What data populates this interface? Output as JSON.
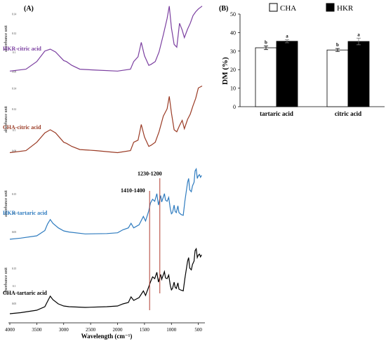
{
  "panels": {
    "a": {
      "label": "(A)"
    },
    "b": {
      "label": "(B)"
    }
  },
  "colors": {
    "purple": "#7b3fa0",
    "brown": "#9a3a24",
    "blue": "#2e7bbf",
    "black": "#000000",
    "marker": "#b03a2e"
  },
  "chart_data": [
    {
      "type": "line",
      "xlabel": "Wavelength (cm⁻¹)",
      "ylabel": "absorbance unit",
      "x_ticks": [
        "4000",
        "3500",
        "3000",
        "2500",
        "2000",
        "1500",
        "1000",
        "500"
      ],
      "xlim": [
        4000,
        430
      ],
      "x_reversed": true,
      "annotations": [
        {
          "label": "1410-1400",
          "x": 1405
        },
        {
          "label": "1230-1200",
          "x": 1215
        }
      ],
      "series": [
        {
          "name": "HKR-citric acid",
          "color": "purple",
          "y_ticks": [
            "0.08",
            "0.1",
            "0.12",
            "0.14"
          ],
          "points": [
            [
              4000,
              0.08
            ],
            [
              3700,
              0.082
            ],
            [
              3500,
              0.09
            ],
            [
              3350,
              0.101
            ],
            [
              3250,
              0.103
            ],
            [
              3150,
              0.1
            ],
            [
              3000,
              0.091
            ],
            [
              2950,
              0.09
            ],
            [
              2850,
              0.086
            ],
            [
              2700,
              0.082
            ],
            [
              2400,
              0.081
            ],
            [
              2000,
              0.08
            ],
            [
              1760,
              0.082
            ],
            [
              1700,
              0.09
            ],
            [
              1620,
              0.095
            ],
            [
              1560,
              0.11
            ],
            [
              1500,
              0.096
            ],
            [
              1420,
              0.086
            ],
            [
              1380,
              0.087
            ],
            [
              1300,
              0.09
            ],
            [
              1230,
              0.1
            ],
            [
              1150,
              0.118
            ],
            [
              1080,
              0.135
            ],
            [
              1040,
              0.148
            ],
            [
              1000,
              0.125
            ],
            [
              950,
              0.108
            ],
            [
              900,
              0.105
            ],
            [
              850,
              0.13
            ],
            [
              800,
              0.123
            ],
            [
              760,
              0.115
            ],
            [
              700,
              0.124
            ],
            [
              650,
              0.13
            ],
            [
              600,
              0.138
            ],
            [
              550,
              0.142
            ],
            [
              500,
              0.145
            ],
            [
              430,
              0.148
            ]
          ]
        },
        {
          "name": "CHA-citric acid",
          "color": "brown",
          "y_ticks": [
            "0.08",
            "0.1",
            "0.12",
            "0.14"
          ],
          "points": [
            [
              4000,
              0.078
            ],
            [
              3700,
              0.08
            ],
            [
              3500,
              0.088
            ],
            [
              3350,
              0.097
            ],
            [
              3250,
              0.1
            ],
            [
              3150,
              0.097
            ],
            [
              3000,
              0.088
            ],
            [
              2950,
              0.087
            ],
            [
              2850,
              0.084
            ],
            [
              2700,
              0.081
            ],
            [
              2400,
              0.08
            ],
            [
              2000,
              0.078
            ],
            [
              1760,
              0.08
            ],
            [
              1700,
              0.088
            ],
            [
              1620,
              0.09
            ],
            [
              1560,
              0.105
            ],
            [
              1500,
              0.093
            ],
            [
              1420,
              0.084
            ],
            [
              1380,
              0.085
            ],
            [
              1300,
              0.088
            ],
            [
              1230,
              0.098
            ],
            [
              1150,
              0.113
            ],
            [
              1080,
              0.12
            ],
            [
              1040,
              0.132
            ],
            [
              1000,
              0.116
            ],
            [
              950,
              0.1
            ],
            [
              900,
              0.098
            ],
            [
              850,
              0.104
            ],
            [
              800,
              0.109
            ],
            [
              760,
              0.101
            ],
            [
              700,
              0.11
            ],
            [
              650,
              0.115
            ],
            [
              600,
              0.123
            ],
            [
              550,
              0.13
            ],
            [
              500,
              0.14
            ],
            [
              430,
              0.142
            ]
          ]
        },
        {
          "name": "HKR-tartaric acid",
          "color": "blue",
          "y_ticks": [
            "0.05",
            "0.1",
            "0.15"
          ],
          "points": [
            [
              4000,
              0.03
            ],
            [
              3800,
              0.033
            ],
            [
              3500,
              0.039
            ],
            [
              3350,
              0.053
            ],
            [
              3300,
              0.07
            ],
            [
              3250,
              0.082
            ],
            [
              3200,
              0.072
            ],
            [
              3100,
              0.06
            ],
            [
              3000,
              0.052
            ],
            [
              2900,
              0.049
            ],
            [
              2600,
              0.044
            ],
            [
              2200,
              0.045
            ],
            [
              2000,
              0.047
            ],
            [
              1900,
              0.055
            ],
            [
              1800,
              0.06
            ],
            [
              1750,
              0.072
            ],
            [
              1700,
              0.06
            ],
            [
              1600,
              0.068
            ],
            [
              1520,
              0.09
            ],
            [
              1480,
              0.078
            ],
            [
              1420,
              0.105
            ],
            [
              1390,
              0.125
            ],
            [
              1350,
              0.135
            ],
            [
              1310,
              0.13
            ],
            [
              1270,
              0.15
            ],
            [
              1240,
              0.12
            ],
            [
              1200,
              0.145
            ],
            [
              1180,
              0.128
            ],
            [
              1130,
              0.15
            ],
            [
              1110,
              0.133
            ],
            [
              1080,
              0.13
            ],
            [
              1050,
              0.14
            ],
            [
              1020,
              0.11
            ],
            [
              1000,
              0.097
            ],
            [
              980,
              0.1
            ],
            [
              950,
              0.12
            ],
            [
              930,
              0.103
            ],
            [
              910,
              0.1
            ],
            [
              880,
              0.118
            ],
            [
              860,
              0.1
            ],
            [
              820,
              0.095
            ],
            [
              780,
              0.093
            ],
            [
              750,
              0.13
            ],
            [
              700,
              0.18
            ],
            [
              680,
              0.19
            ],
            [
              660,
              0.16
            ],
            [
              630,
              0.155
            ],
            [
              610,
              0.17
            ],
            [
              580,
              0.18
            ],
            [
              560,
              0.21
            ],
            [
              540,
              0.215
            ],
            [
              520,
              0.19
            ],
            [
              500,
              0.197
            ],
            [
              480,
              0.2
            ],
            [
              460,
              0.193
            ],
            [
              440,
              0.198
            ]
          ]
        },
        {
          "name": "CHA-tartaric acid",
          "color": "black",
          "y_ticks": [
            "0.05",
            "0.1",
            "0.15"
          ],
          "points": [
            [
              4000,
              0.02
            ],
            [
              3800,
              0.023
            ],
            [
              3500,
              0.03
            ],
            [
              3350,
              0.04
            ],
            [
              3300,
              0.055
            ],
            [
              3250,
              0.07
            ],
            [
              3200,
              0.06
            ],
            [
              3100,
              0.048
            ],
            [
              3000,
              0.042
            ],
            [
              2900,
              0.04
            ],
            [
              2600,
              0.038
            ],
            [
              2200,
              0.04
            ],
            [
              2000,
              0.042
            ],
            [
              1900,
              0.048
            ],
            [
              1800,
              0.052
            ],
            [
              1750,
              0.068
            ],
            [
              1700,
              0.058
            ],
            [
              1600,
              0.066
            ],
            [
              1520,
              0.085
            ],
            [
              1480,
              0.072
            ],
            [
              1420,
              0.097
            ],
            [
              1390,
              0.11
            ],
            [
              1350,
              0.125
            ],
            [
              1310,
              0.12
            ],
            [
              1270,
              0.138
            ],
            [
              1240,
              0.11
            ],
            [
              1200,
              0.132
            ],
            [
              1180,
              0.118
            ],
            [
              1130,
              0.14
            ],
            [
              1110,
              0.122
            ],
            [
              1080,
              0.12
            ],
            [
              1050,
              0.13
            ],
            [
              1020,
              0.1
            ],
            [
              1000,
              0.088
            ],
            [
              980,
              0.092
            ],
            [
              950,
              0.11
            ],
            [
              930,
              0.095
            ],
            [
              910,
              0.092
            ],
            [
              880,
              0.108
            ],
            [
              860,
              0.09
            ],
            [
              820,
              0.087
            ],
            [
              780,
              0.085
            ],
            [
              750,
              0.12
            ],
            [
              700,
              0.17
            ],
            [
              680,
              0.18
            ],
            [
              660,
              0.15
            ],
            [
              630,
              0.145
            ],
            [
              610,
              0.16
            ],
            [
              580,
              0.17
            ],
            [
              560,
              0.2
            ],
            [
              540,
              0.205
            ],
            [
              520,
              0.18
            ],
            [
              500,
              0.187
            ],
            [
              480,
              0.19
            ],
            [
              460,
              0.182
            ],
            [
              440,
              0.188
            ]
          ]
        }
      ]
    },
    {
      "type": "bar",
      "ylabel": "DM (%)",
      "categories": [
        "tartaric  acid",
        "citric acid"
      ],
      "ylim": [
        0,
        50
      ],
      "y_ticks": [
        0,
        10,
        20,
        30,
        40,
        50
      ],
      "legend_position": "top",
      "series": [
        {
          "name": "CHA",
          "fill": "#ffffff",
          "values": [
            31.8,
            30.6
          ],
          "errors": [
            1.0,
            0.8
          ],
          "letters": [
            "b",
            "b"
          ]
        },
        {
          "name": "HKR",
          "fill": "#000000",
          "values": [
            35.3,
            35.2
          ],
          "errors": [
            0.8,
            1.8
          ],
          "letters": [
            "a",
            "a"
          ]
        }
      ]
    }
  ]
}
